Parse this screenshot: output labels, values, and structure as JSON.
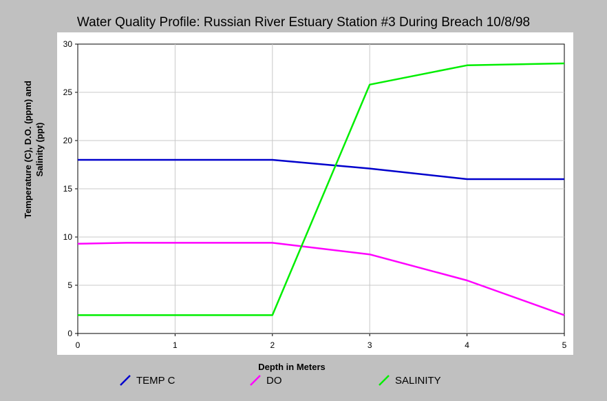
{
  "chart_data": {
    "type": "line",
    "title": "Water Quality Profile: Russian River Estuary Station #3 During Breach 10/8/98",
    "xlabel": "Depth in Meters",
    "ylabel_lines": [
      "Temperature (C), D.O. (ppm) and",
      "Salinity (ppt)"
    ],
    "xlim": [
      0,
      5
    ],
    "ylim": [
      0,
      30
    ],
    "x_ticks": [
      "0",
      "1",
      "2",
      "3",
      "4",
      "5"
    ],
    "y_ticks": [
      "0",
      "5",
      "10",
      "15",
      "20",
      "25",
      "30"
    ],
    "grid": true,
    "legend_position": "bottom",
    "series": [
      {
        "name": "TEMP C",
        "color": "#0000cc",
        "points": [
          [
            0,
            18.0
          ],
          [
            2,
            18.0
          ],
          [
            3,
            17.1
          ],
          [
            4,
            16.0
          ],
          [
            5,
            16.0
          ]
        ]
      },
      {
        "name": "DO",
        "color": "#ff00ff",
        "points": [
          [
            0,
            9.3
          ],
          [
            0.5,
            9.4
          ],
          [
            2,
            9.4
          ],
          [
            3,
            8.2
          ],
          [
            4,
            5.5
          ],
          [
            5,
            1.9
          ]
        ]
      },
      {
        "name": "SALINITY",
        "color": "#00ee00",
        "points": [
          [
            0,
            1.9
          ],
          [
            2,
            1.9
          ],
          [
            3,
            25.8
          ],
          [
            4,
            27.8
          ],
          [
            5,
            28.0
          ]
        ]
      }
    ]
  }
}
